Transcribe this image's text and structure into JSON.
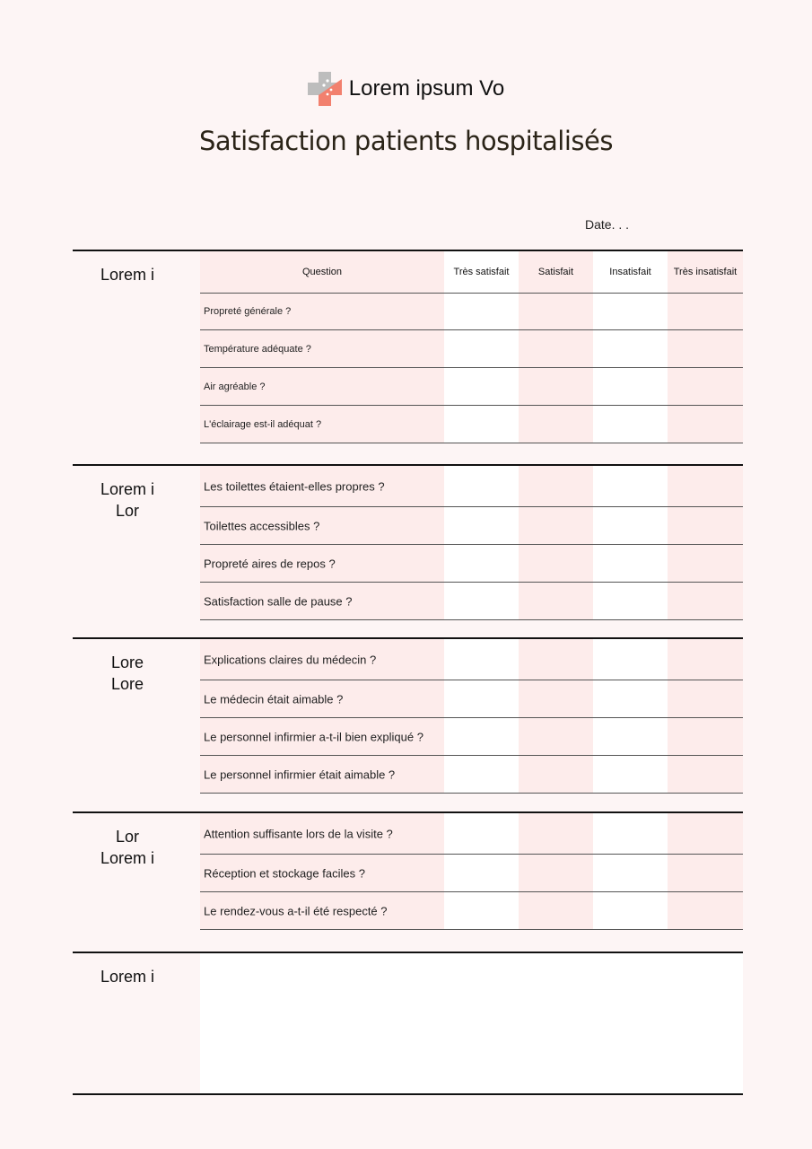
{
  "header": {
    "brand_name": "Lorem ipsum Vo",
    "title": "Satisfaction patients hospitalisés",
    "date_label": "Date. . ."
  },
  "colors": {
    "page_background": "#fdf5f5",
    "pink_column": "#fdeceb",
    "white_column": "#ffffff",
    "logo_gray": "#bdbdbd",
    "logo_coral": "#f2806e"
  },
  "table": {
    "columns": [
      "Question",
      "Très satisfait",
      "Satisfait",
      "Insatisfait",
      "Très insatisfait"
    ],
    "sections": [
      {
        "label": "Lorem i",
        "questions": [
          "Propreté générale ?",
          "Température adéquate ?",
          "Air agréable ?",
          "L'éclairage est-il adéquat ?"
        ]
      },
      {
        "label": "Lorem i\nLor",
        "questions": [
          "Les toilettes étaient-elles propres ?",
          "Toilettes accessibles ?",
          "Propreté aires de repos ?",
          "Satisfaction salle de pause ?"
        ]
      },
      {
        "label": "Lore\nLore",
        "questions": [
          "Explications claires du médecin ?",
          "Le médecin était aimable ?",
          "Le personnel infirmier a-t-il bien expliqué ?",
          "Le personnel infirmier était aimable ?"
        ]
      },
      {
        "label": "Lor\nLorem i",
        "questions": [
          "Attention suffisante lors de la visite ?",
          "Réception et stockage faciles ?",
          "Le rendez-vous a-t-il été respecté ?"
        ]
      },
      {
        "label": "Lorem i",
        "questions": []
      }
    ]
  }
}
